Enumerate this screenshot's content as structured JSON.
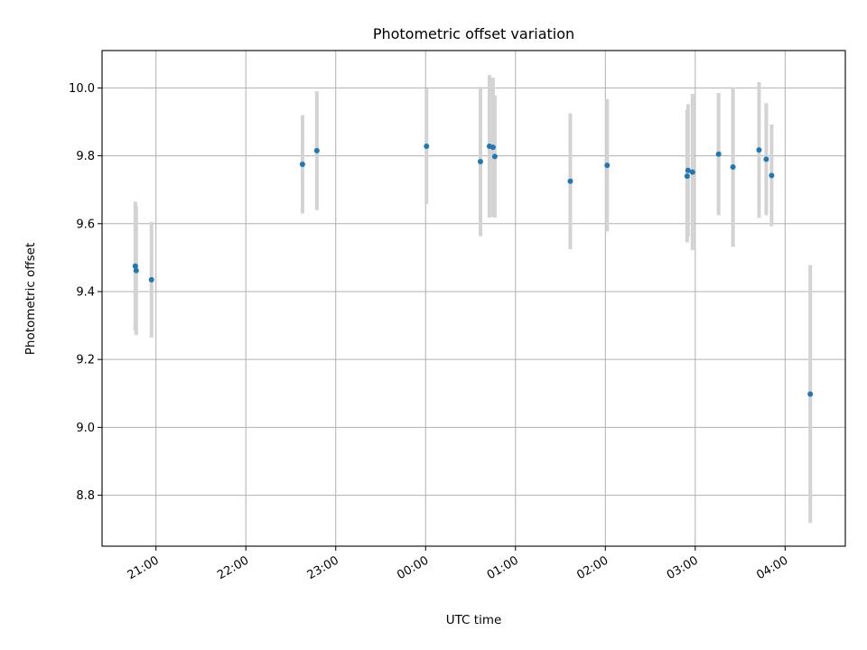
{
  "chart_data": {
    "type": "scatter",
    "title": "Photometric offset variation",
    "xlabel": "UTC time",
    "ylabel": "Photometric offset",
    "x_unit": "hours (UTC clock; values past 24 = after midnight)",
    "xlim": [
      20.4,
      28.67
    ],
    "ylim": [
      8.65,
      10.11
    ],
    "grid": true,
    "x_ticks": [
      {
        "value": 21,
        "label": "21:00"
      },
      {
        "value": 22,
        "label": "22:00"
      },
      {
        "value": 23,
        "label": "23:00"
      },
      {
        "value": 24,
        "label": "00:00"
      },
      {
        "value": 25,
        "label": "01:00"
      },
      {
        "value": 26,
        "label": "02:00"
      },
      {
        "value": 27,
        "label": "03:00"
      },
      {
        "value": 28,
        "label": "04:00"
      }
    ],
    "y_ticks": [
      {
        "value": 8.8,
        "label": "8.8"
      },
      {
        "value": 9.0,
        "label": "9.0"
      },
      {
        "value": 9.2,
        "label": "9.2"
      },
      {
        "value": 9.4,
        "label": "9.4"
      },
      {
        "value": 9.6,
        "label": "9.6"
      },
      {
        "value": 9.8,
        "label": "9.8"
      },
      {
        "value": 10.0,
        "label": "10.0"
      }
    ],
    "colors": {
      "point": "#1f77b4",
      "errorbar": "#d3d3d3",
      "grid": "#b0b0b0"
    },
    "series": [
      {
        "points": [
          {
            "x": 20.77,
            "y": 9.475,
            "err": 0.19
          },
          {
            "x": 20.78,
            "y": 9.462,
            "err": 0.19
          },
          {
            "x": 20.95,
            "y": 9.435,
            "err": 0.17
          },
          {
            "x": 22.63,
            "y": 9.775,
            "err": 0.145
          },
          {
            "x": 22.79,
            "y": 9.815,
            "err": 0.175
          },
          {
            "x": 24.01,
            "y": 9.828,
            "err": 0.17
          },
          {
            "x": 24.61,
            "y": 9.783,
            "err": 0.22
          },
          {
            "x": 24.71,
            "y": 9.828,
            "err": 0.21
          },
          {
            "x": 24.75,
            "y": 9.825,
            "err": 0.205
          },
          {
            "x": 24.77,
            "y": 9.798,
            "err": 0.18
          },
          {
            "x": 25.61,
            "y": 9.725,
            "err": 0.2
          },
          {
            "x": 26.02,
            "y": 9.772,
            "err": 0.195
          },
          {
            "x": 26.91,
            "y": 9.74,
            "err": 0.195
          },
          {
            "x": 26.92,
            "y": 9.757,
            "err": 0.195
          },
          {
            "x": 26.97,
            "y": 9.752,
            "err": 0.23
          },
          {
            "x": 27.26,
            "y": 9.805,
            "err": 0.18
          },
          {
            "x": 27.42,
            "y": 9.767,
            "err": 0.235
          },
          {
            "x": 27.71,
            "y": 9.817,
            "err": 0.2
          },
          {
            "x": 27.79,
            "y": 9.79,
            "err": 0.165
          },
          {
            "x": 27.85,
            "y": 9.742,
            "err": 0.15
          },
          {
            "x": 28.28,
            "y": 9.098,
            "err": 0.38
          }
        ]
      }
    ]
  }
}
